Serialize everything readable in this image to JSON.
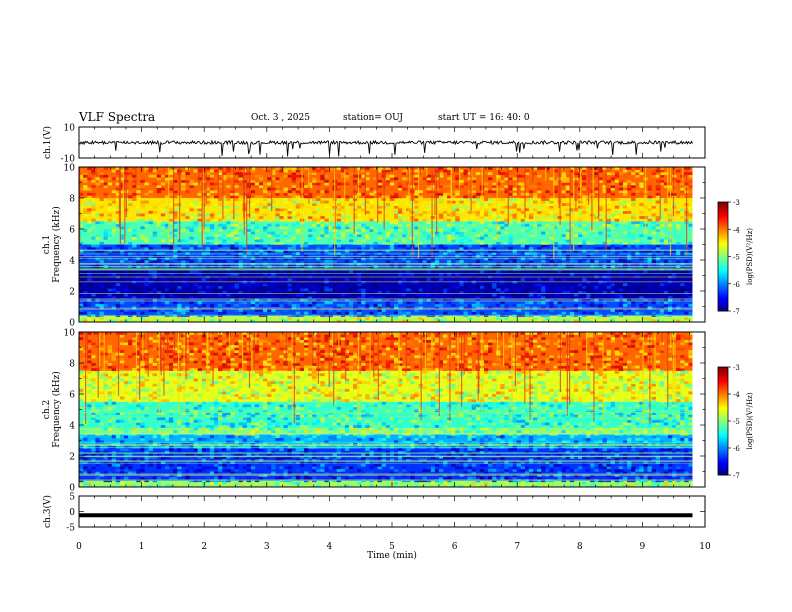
{
  "header": {
    "title": "VLF Spectra",
    "date": "Oct. 3 , 2025",
    "station": "station= OUJ",
    "start": "start UT = 16: 40: 0"
  },
  "chart_data": [
    {
      "type": "line",
      "panel": "ch1-waveform",
      "ylabel": "ch.1(V)",
      "ylim": [
        -10,
        10
      ],
      "ytick_labels": [
        "10",
        "-10"
      ],
      "xlim": [
        0,
        10
      ],
      "trace_description_level": 0.0
    },
    {
      "type": "heatmap",
      "panel": "ch1-spectrogram",
      "ylabel_line1": "ch.1",
      "ylabel_line2": "Frequency (kHz)",
      "ylim": [
        0,
        10
      ],
      "ytick_labels": [
        "0",
        "2",
        "4",
        "6",
        "8",
        "10"
      ],
      "xlim": [
        0,
        10
      ],
      "data_end_min": 9.8,
      "colorbar": {
        "label": "log(PSD)(V²/Hz)",
        "range": [
          -7,
          -3
        ],
        "tick_labels": [
          "-3",
          "-4",
          "-5",
          "-6",
          "-7"
        ]
      },
      "bands_khz": [
        {
          "from": 0.0,
          "to": 0.4,
          "level": -4.8
        },
        {
          "from": 0.4,
          "to": 1.5,
          "level": -6.2
        },
        {
          "from": 1.5,
          "to": 3.5,
          "level": -6.8
        },
        {
          "from": 3.5,
          "to": 5.0,
          "level": -6.2
        },
        {
          "from": 5.0,
          "to": 6.5,
          "level": -5.2
        },
        {
          "from": 6.5,
          "to": 8.0,
          "level": -4.4
        },
        {
          "from": 8.0,
          "to": 10.0,
          "level": -3.9
        }
      ]
    },
    {
      "type": "heatmap",
      "panel": "ch2-spectrogram",
      "ylabel_line1": "ch.2",
      "ylabel_line2": "Frequency (kHz)",
      "ylim": [
        0,
        10
      ],
      "ytick_labels": [
        "0",
        "2",
        "4",
        "6",
        "8",
        "10"
      ],
      "xlim": [
        0,
        10
      ],
      "data_end_min": 9.8,
      "colorbar": {
        "label": "log(PSD)(V²/Hz)",
        "range": [
          -7,
          -3
        ],
        "tick_labels": [
          "-3",
          "-4",
          "-5",
          "-6",
          "-7"
        ]
      },
      "bands_khz": [
        {
          "from": 0.0,
          "to": 0.4,
          "level": -4.9
        },
        {
          "from": 0.4,
          "to": 2.5,
          "level": -6.3
        },
        {
          "from": 2.5,
          "to": 3.4,
          "level": -5.8
        },
        {
          "from": 3.4,
          "to": 3.8,
          "level": -5.0
        },
        {
          "from": 3.8,
          "to": 5.5,
          "level": -5.3
        },
        {
          "from": 5.5,
          "to": 7.5,
          "level": -4.6
        },
        {
          "from": 7.5,
          "to": 10.0,
          "level": -3.9
        }
      ]
    },
    {
      "type": "line",
      "panel": "ch3-waveform",
      "ylabel": "ch.3(V)",
      "ylim": [
        -5,
        5
      ],
      "ytick_labels": [
        "5",
        "0",
        "-5"
      ],
      "xlim": [
        0,
        10
      ],
      "trace_level": -1.2
    }
  ],
  "xaxis": {
    "label": "Time (min)",
    "tick_labels": [
      "0",
      "1",
      "2",
      "3",
      "4",
      "5",
      "6",
      "7",
      "8",
      "9",
      "10"
    ]
  }
}
